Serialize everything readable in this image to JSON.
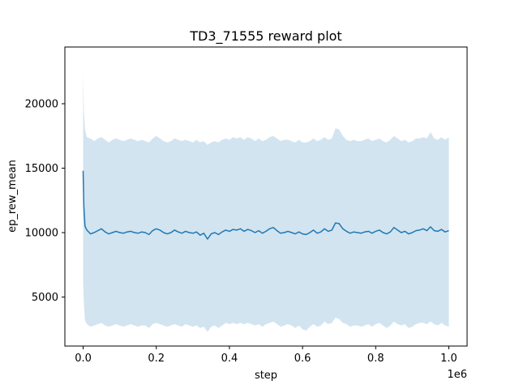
{
  "chart_data": {
    "type": "line",
    "title": "TD3_71555 reward plot",
    "xlabel": "step",
    "ylabel": "ep_rew_mean",
    "x_offset_label": "1e6",
    "xlim": [
      -0.05,
      1.05
    ],
    "ylim": [
      1200,
      24400
    ],
    "x_ticks": [
      0.0,
      0.2,
      0.4,
      0.6,
      0.8,
      1.0
    ],
    "x_tick_labels": [
      "0.0",
      "0.2",
      "0.4",
      "0.6",
      "0.8",
      "1.0"
    ],
    "y_ticks": [
      5000,
      10000,
      15000,
      20000
    ],
    "y_tick_labels": [
      "5000",
      "10000",
      "15000",
      "20000"
    ],
    "grid": false,
    "colors": {
      "line": "#1f77b4",
      "band": "#1f77b4"
    },
    "series": [
      {
        "x": [
          0.0,
          0.002,
          0.005,
          0.01,
          0.02,
          0.03,
          0.04,
          0.05,
          0.06,
          0.07,
          0.08,
          0.09,
          0.1,
          0.11,
          0.12,
          0.13,
          0.14,
          0.15,
          0.16,
          0.17,
          0.18,
          0.19,
          0.2,
          0.21,
          0.22,
          0.23,
          0.24,
          0.25,
          0.26,
          0.27,
          0.28,
          0.29,
          0.3,
          0.31,
          0.32,
          0.33,
          0.34,
          0.35,
          0.36,
          0.37,
          0.38,
          0.39,
          0.4,
          0.41,
          0.42,
          0.43,
          0.44,
          0.45,
          0.46,
          0.47,
          0.48,
          0.49,
          0.5,
          0.51,
          0.52,
          0.53,
          0.54,
          0.55,
          0.56,
          0.57,
          0.58,
          0.59,
          0.6,
          0.61,
          0.62,
          0.63,
          0.64,
          0.65,
          0.66,
          0.67,
          0.68,
          0.69,
          0.7,
          0.71,
          0.72,
          0.73,
          0.74,
          0.75,
          0.76,
          0.77,
          0.78,
          0.79,
          0.8,
          0.81,
          0.82,
          0.83,
          0.84,
          0.85,
          0.86,
          0.87,
          0.88,
          0.89,
          0.9,
          0.91,
          0.92,
          0.93,
          0.94,
          0.95,
          0.96,
          0.97,
          0.98,
          0.99,
          1.0
        ],
        "mean": [
          14800,
          12000,
          10500,
          10200,
          9900,
          10000,
          10150,
          10300,
          10050,
          9900,
          10000,
          10100,
          10000,
          9950,
          10050,
          10100,
          10000,
          9950,
          10050,
          10000,
          9850,
          10150,
          10300,
          10200,
          10000,
          9900,
          10000,
          10200,
          10050,
          9950,
          10100,
          10000,
          9950,
          10050,
          9800,
          9950,
          9500,
          9900,
          10000,
          9850,
          10050,
          10200,
          10100,
          10250,
          10200,
          10300,
          10100,
          10250,
          10150,
          10000,
          10150,
          9950,
          10100,
          10300,
          10400,
          10150,
          9950,
          10000,
          10100,
          10000,
          9900,
          10050,
          9900,
          9850,
          10000,
          10200,
          9950,
          10050,
          10300,
          10100,
          10200,
          10750,
          10700,
          10300,
          10100,
          9950,
          10050,
          10000,
          9950,
          10050,
          10100,
          9950,
          10100,
          10200,
          10000,
          9900,
          10050,
          10400,
          10200,
          10000,
          10100,
          9900,
          10000,
          10150,
          10200,
          10300,
          10150,
          10450,
          10150,
          10100,
          10250,
          10050,
          10150
        ],
        "upper": [
          22500,
          19500,
          18000,
          17400,
          17300,
          17100,
          17300,
          17400,
          17200,
          17000,
          17200,
          17300,
          17200,
          17100,
          17200,
          17300,
          17200,
          17100,
          17200,
          17100,
          17000,
          17300,
          17500,
          17300,
          17100,
          17000,
          17100,
          17300,
          17200,
          17100,
          17200,
          17100,
          17000,
          17200,
          17000,
          17100,
          16800,
          17000,
          17100,
          17000,
          17200,
          17300,
          17200,
          17400,
          17300,
          17400,
          17200,
          17400,
          17300,
          17100,
          17300,
          17100,
          17200,
          17400,
          17500,
          17300,
          17100,
          17200,
          17200,
          17100,
          17000,
          17200,
          17000,
          17000,
          17100,
          17300,
          17100,
          17200,
          17400,
          17200,
          17300,
          18100,
          18000,
          17500,
          17200,
          17100,
          17200,
          17100,
          17100,
          17200,
          17300,
          17100,
          17200,
          17300,
          17100,
          17000,
          17200,
          17500,
          17300,
          17100,
          17200,
          17000,
          17100,
          17300,
          17300,
          17400,
          17300,
          17800,
          17300,
          17200,
          17400,
          17200,
          17400
        ],
        "lower": [
          6200,
          4500,
          3200,
          2900,
          2700,
          2800,
          2900,
          3000,
          2800,
          2700,
          2800,
          2900,
          2800,
          2700,
          2800,
          2900,
          2800,
          2700,
          2800,
          2800,
          2600,
          2900,
          3000,
          2900,
          2800,
          2700,
          2800,
          2900,
          2800,
          2700,
          2900,
          2800,
          2700,
          2800,
          2600,
          2700,
          2300,
          2700,
          2800,
          2600,
          2800,
          3000,
          2900,
          3000,
          2900,
          3000,
          2900,
          3000,
          2900,
          2800,
          2900,
          2700,
          2900,
          3000,
          3100,
          2900,
          2700,
          2800,
          2900,
          2800,
          2600,
          2800,
          2500,
          2400,
          2700,
          2900,
          2700,
          2800,
          3100,
          2900,
          3000,
          3400,
          3300,
          3000,
          2900,
          2700,
          2800,
          2800,
          2700,
          2800,
          2900,
          2700,
          2900,
          3000,
          2800,
          2600,
          2800,
          3100,
          2900,
          2800,
          2900,
          2600,
          2700,
          2900,
          3000,
          3000,
          2900,
          3100,
          2900,
          2800,
          3000,
          2800,
          2700
        ]
      }
    ]
  }
}
